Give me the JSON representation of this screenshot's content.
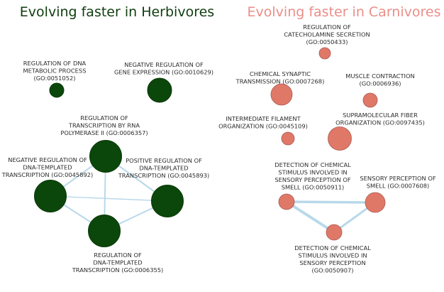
{
  "colors": {
    "herbivore_title": "#0f3d0f",
    "carnivore_title": "#ea8e88",
    "herbivore_node": "#0b470b",
    "carnivore_node": "#e07868",
    "edge": "#b8d9ea"
  },
  "herbivores": {
    "title": "Evolving faster in Herbivores",
    "nodes": [
      {
        "id": "h1",
        "label_lines": [
          "REGULATION OF DNA",
          "METABOLIC PROCESS",
          "(GO:0051052)"
        ]
      },
      {
        "id": "h2",
        "label_lines": [
          "NEGATIVE REGULATION OF",
          "GENE EXPRESSION (GO:0010629)"
        ]
      },
      {
        "id": "h3",
        "label_lines": [
          "REGULATION OF",
          "TRANSCRIPTION BY RNA",
          "POLYMERASE II (GO:0006357)"
        ]
      },
      {
        "id": "h4",
        "label_lines": [
          "NEGATIVE REGULATION OF",
          "DNA-TEMPLATED",
          "TRANSCRIPTION (GO:0045892)"
        ]
      },
      {
        "id": "h5",
        "label_lines": [
          "POSITIVE REGULATION OF",
          "DNA-TEMPLATED",
          "TRANSCRIPTION (GO:0045893)"
        ]
      },
      {
        "id": "h6",
        "label_lines": [
          "REGULATION OF",
          "DNA-TEMPLATED",
          "TRANSCRIPTION (GO:0006355)"
        ]
      }
    ],
    "edges": [
      [
        "h3",
        "h4"
      ],
      [
        "h3",
        "h5"
      ],
      [
        "h3",
        "h6"
      ],
      [
        "h4",
        "h6"
      ],
      [
        "h5",
        "h6"
      ],
      [
        "h4",
        "h5"
      ]
    ]
  },
  "carnivores": {
    "title": "Evolving faster in Carnivores",
    "nodes": [
      {
        "id": "c1",
        "label_lines": [
          "REGULATION OF",
          "CATECHOLAMINE SECRETION",
          "(GO:0050433)"
        ]
      },
      {
        "id": "c2",
        "label_lines": [
          "CHEMICAL SYNAPTIC",
          "TRANSMISSION (GO:0007268)"
        ]
      },
      {
        "id": "c3",
        "label_lines": [
          "MUSCLE CONTRACTION",
          "(GO:0006936)"
        ]
      },
      {
        "id": "c4",
        "label_lines": [
          "INTERMEDIATE FILAMENT",
          "ORGANIZATION (GO:0045109)"
        ]
      },
      {
        "id": "c5",
        "label_lines": [
          "SUPRAMOLECULAR FIBER",
          "ORGANIZATION (GO:0097435)"
        ]
      },
      {
        "id": "c6",
        "label_lines": [
          "DETECTION OF CHEMICAL",
          "STIMULUS INVOLVED IN",
          "SENSORY PERCEPTION OF",
          "SMELL (GO:0050911)"
        ]
      },
      {
        "id": "c7",
        "label_lines": [
          "SENSORY PERCEPTION OF",
          "SMELL (GO:0007608)"
        ]
      },
      {
        "id": "c8",
        "label_lines": [
          "DETECTION OF CHEMICAL",
          "STIMULUS INVOLVED IN",
          "SENSORY PERCEPTION",
          "(GO:0050907)"
        ]
      }
    ],
    "edges": [
      [
        "c6",
        "c7"
      ],
      [
        "c6",
        "c8"
      ],
      [
        "c7",
        "c8"
      ]
    ]
  }
}
